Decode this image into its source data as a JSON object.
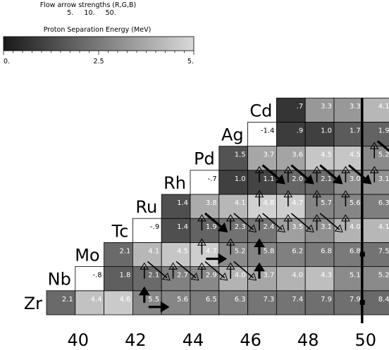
{
  "header": {
    "flow_title": "Flow arrow strengths (R,G,B)",
    "flow_values": "5.     10.     50."
  },
  "colorbar": {
    "label": "Proton Separation Energy (MeV)",
    "min": 0,
    "max": 5,
    "tick_labels": [
      "0.",
      "2.5",
      "5."
    ],
    "colors": {
      "low": "#1a1a1a",
      "high": "#d9d9d9"
    }
  },
  "chart_data": {
    "type": "heatmap",
    "title": "",
    "xlabel": "",
    "ylabel": "",
    "x_ticks": [
      40,
      42,
      44,
      46,
      48,
      50
    ],
    "x_tick_labels": [
      "40",
      "42",
      "44",
      "46",
      "48",
      "50"
    ],
    "neutron_range": [
      39,
      50
    ],
    "closed_shell_line_N": 50,
    "elements": [
      {
        "symbol": "Zr",
        "Z": 40,
        "cells": [
          {
            "N": 39,
            "label": "2.1",
            "value": 2.1
          },
          {
            "N": 40,
            "label": "4.4",
            "value": 4.4
          },
          {
            "N": 41,
            "label": "4.6",
            "value": 4.6
          },
          {
            "N": 42,
            "label": "5.5",
            "value": 5.5
          },
          {
            "N": 43,
            "label": "5.6",
            "value": 5.6
          },
          {
            "N": 44,
            "label": "6.5",
            "value": 6.5
          },
          {
            "N": 45,
            "label": "6.3",
            "value": 6.3
          },
          {
            "N": 46,
            "label": "7.3",
            "value": 7.3
          },
          {
            "N": 47,
            "label": "7.4",
            "value": 7.4
          },
          {
            "N": 48,
            "label": "7.9",
            "value": 7.9
          },
          {
            "N": 49,
            "label": "7.9",
            "value": 7.9
          },
          {
            "N": 50,
            "label": "8.4",
            "value": 8.4
          }
        ]
      },
      {
        "symbol": "Nb",
        "Z": 41,
        "cells": [
          {
            "N": 40,
            "label": "-.8",
            "value": -0.8
          },
          {
            "N": 41,
            "label": "1.8",
            "value": 1.8
          },
          {
            "N": 42,
            "label": "2.1",
            "value": 2.1
          },
          {
            "N": 43,
            "label": "2.7",
            "value": 2.7
          },
          {
            "N": 44,
            "label": "2.9",
            "value": 2.9
          },
          {
            "N": 45,
            "label": "4.0",
            "value": 4.0
          },
          {
            "N": 46,
            "label": "3.7",
            "value": 3.7
          },
          {
            "N": 47,
            "label": "4.0",
            "value": 4.0
          },
          {
            "N": 48,
            "label": "4.3",
            "value": 4.3
          },
          {
            "N": 49,
            "label": "5.1",
            "value": 5.1
          },
          {
            "N": 50,
            "label": "5.2",
            "value": 5.2
          }
        ]
      },
      {
        "symbol": "Mo",
        "Z": 42,
        "cells": [
          {
            "N": 41,
            "label": "2.1",
            "value": 2.1
          },
          {
            "N": 42,
            "label": "4.1",
            "value": 4.1
          },
          {
            "N": 43,
            "label": "4.5",
            "value": 4.5
          },
          {
            "N": 44,
            "label": "4.7",
            "value": 4.7
          },
          {
            "N": 45,
            "label": "5.2",
            "value": 5.2
          },
          {
            "N": 46,
            "label": "5.8",
            "value": 5.8
          },
          {
            "N": 47,
            "label": "6.2",
            "value": 6.2
          },
          {
            "N": 48,
            "label": "6.8",
            "value": 6.8
          },
          {
            "N": 49,
            "label": "6.8",
            "value": 6.8
          },
          {
            "N": 50,
            "label": "7.5",
            "value": 7.5
          }
        ]
      },
      {
        "symbol": "Tc",
        "Z": 43,
        "cells": [
          {
            "N": 42,
            "label": "-.9",
            "value": -0.9
          },
          {
            "N": 43,
            "label": "1.4",
            "value": 1.4
          },
          {
            "N": 44,
            "label": "1.9",
            "value": 1.9
          },
          {
            "N": 45,
            "label": "2.3",
            "value": 2.3
          },
          {
            "N": 46,
            "label": "2.4",
            "value": 2.4
          },
          {
            "N": 47,
            "label": "3.5",
            "value": 3.5
          },
          {
            "N": 48,
            "label": "3.1",
            "value": 3.1
          },
          {
            "N": 49,
            "label": "4.0",
            "value": 4.0
          },
          {
            "N": 50,
            "label": "4.1",
            "value": 4.1
          }
        ]
      },
      {
        "symbol": "Ru",
        "Z": 44,
        "cells": [
          {
            "N": 43,
            "label": "1.4",
            "value": 1.4
          },
          {
            "N": 44,
            "label": "3.8",
            "value": 3.8
          },
          {
            "N": 45,
            "label": "4.1",
            "value": 4.1
          },
          {
            "N": 46,
            "label": "4.8",
            "value": 4.8
          },
          {
            "N": 47,
            "label": "4.7",
            "value": 4.7
          },
          {
            "N": 48,
            "label": "5.7",
            "value": 5.7
          },
          {
            "N": 49,
            "label": "5.6",
            "value": 5.6
          },
          {
            "N": 50,
            "label": "6.3",
            "value": 6.3
          }
        ]
      },
      {
        "symbol": "Rh",
        "Z": 45,
        "cells": [
          {
            "N": 44,
            "label": "-.7",
            "value": -0.7
          },
          {
            "N": 45,
            "label": "1.0",
            "value": 1.0
          },
          {
            "N": 46,
            "label": "1.1",
            "value": 1.1
          },
          {
            "N": 47,
            "label": "2.0",
            "value": 2.0
          },
          {
            "N": 48,
            "label": "2.1",
            "value": 2.1
          },
          {
            "N": 49,
            "label": "3.0",
            "value": 3.0
          },
          {
            "N": 50,
            "label": "3.1",
            "value": 3.1
          }
        ]
      },
      {
        "symbol": "Pd",
        "Z": 46,
        "cells": [
          {
            "N": 45,
            "label": "1.5",
            "value": 1.5
          },
          {
            "N": 46,
            "label": "3.7",
            "value": 3.7
          },
          {
            "N": 47,
            "label": "3.6",
            "value": 3.6
          },
          {
            "N": 48,
            "label": "4.5",
            "value": 4.5
          },
          {
            "N": 49,
            "label": "4.5",
            "value": 4.5
          },
          {
            "N": 50,
            "label": "5.2",
            "value": 5.2
          }
        ]
      },
      {
        "symbol": "Ag",
        "Z": 47,
        "cells": [
          {
            "N": 46,
            "label": "-1.4",
            "value": -1.4
          },
          {
            "N": 47,
            "label": ".9",
            "value": 0.9
          },
          {
            "N": 48,
            "label": "1.0",
            "value": 1.0
          },
          {
            "N": 49,
            "label": "1.7",
            "value": 1.7
          },
          {
            "N": 50,
            "label": "1.9",
            "value": 1.9
          }
        ]
      },
      {
        "symbol": "Cd",
        "Z": 48,
        "cells": [
          {
            "N": 47,
            "label": ".7",
            "value": 0.7
          },
          {
            "N": 48,
            "label": "3.3",
            "value": 3.3
          },
          {
            "N": 49,
            "label": "3.3",
            "value": 3.3
          },
          {
            "N": 50,
            "label": "4.1",
            "value": 4.1
          }
        ]
      }
    ],
    "flow_arrows": [
      {
        "from": [
          42,
          40
        ],
        "to": [
          42,
          41
        ],
        "strength": 2
      },
      {
        "from": [
          42,
          40
        ],
        "to": [
          43,
          40
        ],
        "strength": 2
      },
      {
        "from": [
          42,
          41
        ],
        "to": [
          42,
          42
        ],
        "strength": 1
      },
      {
        "from": [
          43,
          41
        ],
        "to": [
          43,
          42
        ],
        "strength": 1
      },
      {
        "from": [
          42,
          42
        ],
        "to": [
          43,
          41
        ],
        "strength": 1
      },
      {
        "from": [
          43,
          42
        ],
        "to": [
          44,
          41
        ],
        "strength": 1
      },
      {
        "from": [
          44,
          42
        ],
        "to": [
          45,
          41
        ],
        "strength": 1
      },
      {
        "from": [
          44,
          42
        ],
        "to": [
          45,
          42
        ],
        "strength": 2
      },
      {
        "from": [
          45,
          42
        ],
        "to": [
          46,
          41
        ],
        "strength": 1
      },
      {
        "from": [
          44,
          41
        ],
        "to": [
          44,
          42
        ],
        "strength": 1
      },
      {
        "from": [
          45,
          41
        ],
        "to": [
          45,
          42
        ],
        "strength": 1
      },
      {
        "from": [
          46,
          41
        ],
        "to": [
          46,
          42
        ],
        "strength": 2
      },
      {
        "from": [
          44,
          42
        ],
        "to": [
          44,
          43
        ],
        "strength": 1
      },
      {
        "from": [
          45,
          42
        ],
        "to": [
          45,
          43
        ],
        "strength": 1
      },
      {
        "from": [
          46,
          42
        ],
        "to": [
          46,
          43
        ],
        "strength": 2
      },
      {
        "from": [
          44,
          44
        ],
        "to": [
          45,
          43
        ],
        "strength": 2
      },
      {
        "from": [
          45,
          44
        ],
        "to": [
          46,
          43
        ],
        "strength": 1
      },
      {
        "from": [
          46,
          44
        ],
        "to": [
          47,
          43
        ],
        "strength": 1
      },
      {
        "from": [
          47,
          44
        ],
        "to": [
          48,
          43
        ],
        "strength": 1
      },
      {
        "from": [
          48,
          44
        ],
        "to": [
          49,
          43
        ],
        "strength": 1
      },
      {
        "from": [
          44,
          43
        ],
        "to": [
          44,
          44
        ],
        "strength": 1
      },
      {
        "from": [
          45,
          43
        ],
        "to": [
          45,
          44
        ],
        "strength": 1
      },
      {
        "from": [
          46,
          43
        ],
        "to": [
          46,
          44
        ],
        "strength": 1
      },
      {
        "from": [
          47,
          43
        ],
        "to": [
          47,
          44
        ],
        "strength": 1
      },
      {
        "from": [
          48,
          43
        ],
        "to": [
          48,
          44
        ],
        "strength": 1
      },
      {
        "from": [
          49,
          43
        ],
        "to": [
          49,
          44
        ],
        "strength": 1
      },
      {
        "from": [
          46,
          44
        ],
        "to": [
          46,
          45
        ],
        "strength": 1
      },
      {
        "from": [
          47,
          44
        ],
        "to": [
          47,
          45
        ],
        "strength": 1
      },
      {
        "from": [
          48,
          44
        ],
        "to": [
          48,
          45
        ],
        "strength": 1
      },
      {
        "from": [
          49,
          44
        ],
        "to": [
          49,
          45
        ],
        "strength": 1
      },
      {
        "from": [
          46,
          46
        ],
        "to": [
          47,
          45
        ],
        "strength": 2
      },
      {
        "from": [
          47,
          46
        ],
        "to": [
          48,
          45
        ],
        "strength": 2
      },
      {
        "from": [
          48,
          46
        ],
        "to": [
          49,
          45
        ],
        "strength": 2
      },
      {
        "from": [
          49,
          46
        ],
        "to": [
          50,
          45
        ],
        "strength": 2
      },
      {
        "from": [
          46,
          45
        ],
        "to": [
          46,
          46
        ],
        "strength": 1
      },
      {
        "from": [
          47,
          45
        ],
        "to": [
          47,
          46
        ],
        "strength": 1
      },
      {
        "from": [
          48,
          45
        ],
        "to": [
          48,
          46
        ],
        "strength": 1
      },
      {
        "from": [
          49,
          45
        ],
        "to": [
          49,
          46
        ],
        "strength": 1
      },
      {
        "from": [
          50,
          47
        ],
        "to": [
          51,
          46
        ],
        "strength": 2
      },
      {
        "from": [
          50,
          45
        ],
        "to": [
          50,
          46
        ],
        "strength": 1
      },
      {
        "from": [
          50,
          46
        ],
        "to": [
          50,
          47
        ],
        "strength": 1
      }
    ],
    "markers": [
      {
        "N": 49.5,
        "Z": 42,
        "shape": "square"
      },
      {
        "N": 49.5,
        "Z": 40,
        "shape": "square"
      }
    ]
  }
}
